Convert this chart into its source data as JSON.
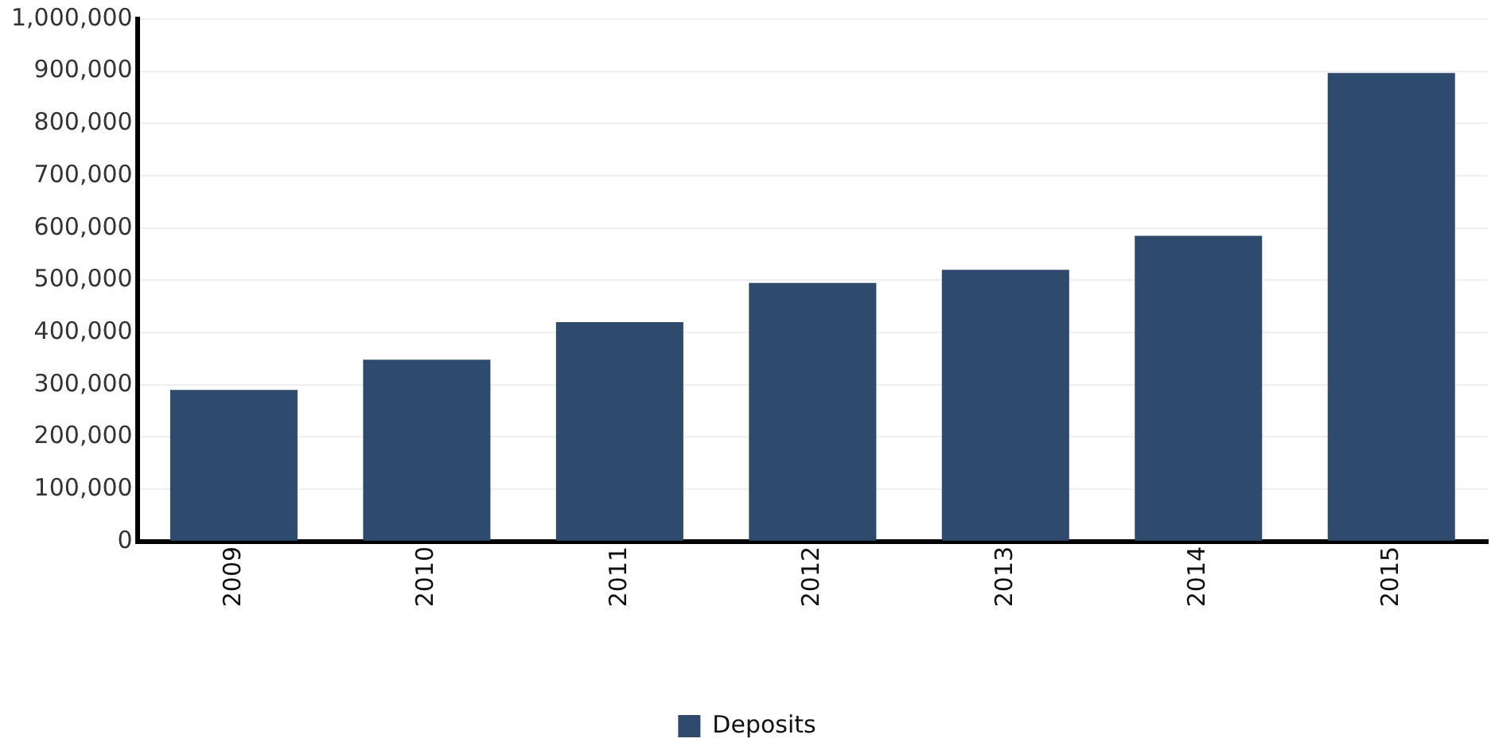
{
  "chart_data": {
    "type": "bar",
    "categories": [
      "2009",
      "2010",
      "2011",
      "2012",
      "2013",
      "2014",
      "2015"
    ],
    "series": [
      {
        "name": "Deposits",
        "color": "#2e4a6c",
        "values": [
          290000,
          348000,
          420000,
          495000,
          520000,
          585000,
          897000
        ]
      }
    ],
    "ylim": [
      0,
      1000000
    ],
    "yticks": [
      {
        "value": 0,
        "label": "0"
      },
      {
        "value": 100000,
        "label": "100,000"
      },
      {
        "value": 200000,
        "label": "200,000"
      },
      {
        "value": 300000,
        "label": "300,000"
      },
      {
        "value": 400000,
        "label": "400,000"
      },
      {
        "value": 500000,
        "label": "500,000"
      },
      {
        "value": 600000,
        "label": "600,000"
      },
      {
        "value": 700000,
        "label": "700,000"
      },
      {
        "value": 800000,
        "label": "800,000"
      },
      {
        "value": 900000,
        "label": "900,000"
      },
      {
        "value": 1000000,
        "label": "1,000,000"
      }
    ],
    "grid": "y",
    "legend": "bottom"
  }
}
